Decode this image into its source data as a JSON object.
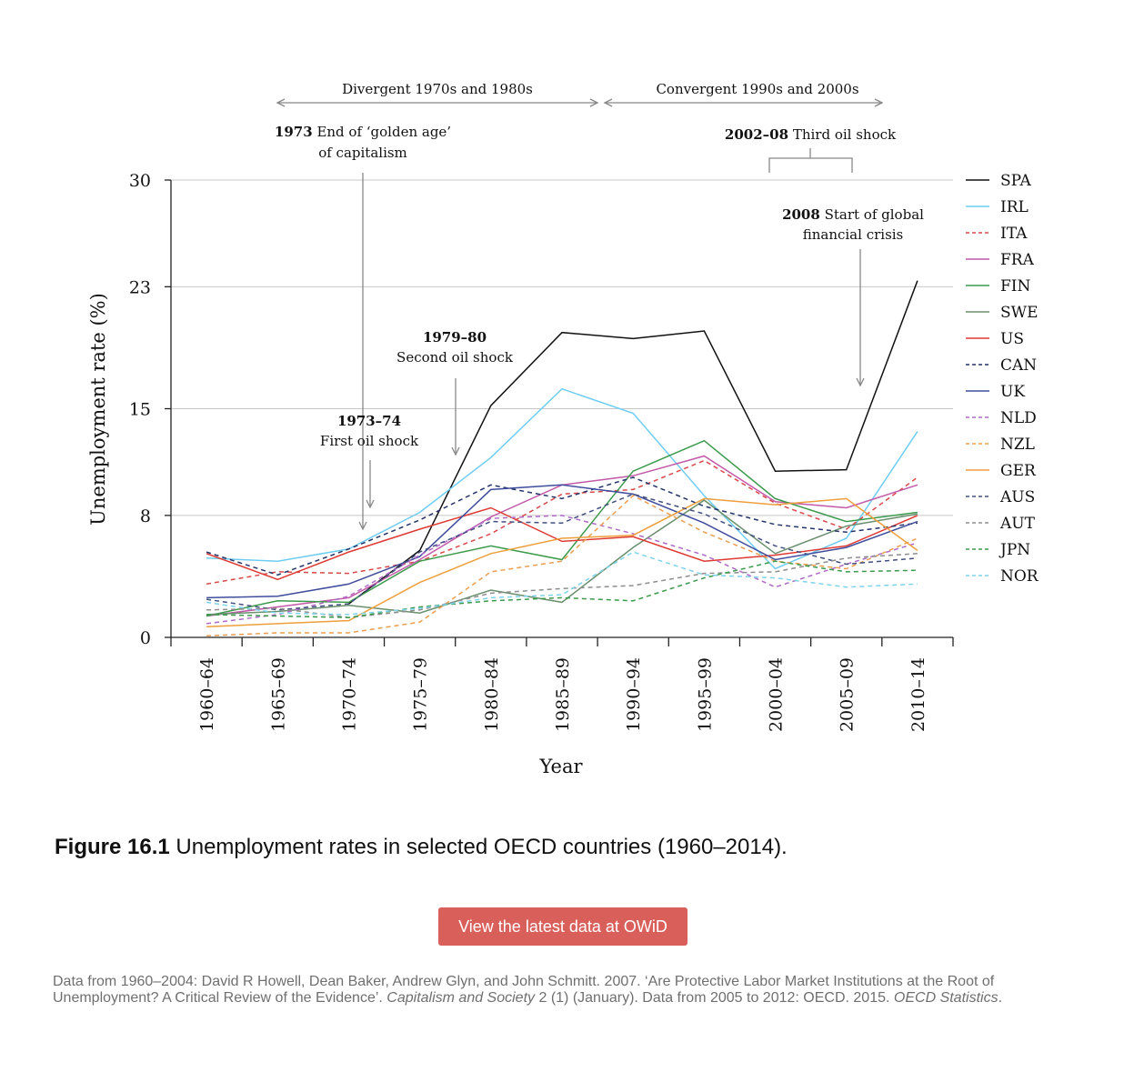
{
  "chart_data": {
    "type": "line",
    "title": "",
    "xlabel": "Year",
    "ylabel": "Unemployment rate (%)",
    "categories": [
      "1960–64",
      "1965–69",
      "1970–74",
      "1975–79",
      "1980–84",
      "1985–89",
      "1990–94",
      "1995–99",
      "2000–04",
      "2005–09",
      "2010–14"
    ],
    "yticks": [
      0,
      8,
      15,
      23,
      30
    ],
    "ylim": [
      0,
      30
    ],
    "grid": true,
    "legend_position": "right",
    "series": [
      {
        "name": "SPA",
        "color": "#111111",
        "dash": "solid",
        "values": [
          null,
          null,
          2.2,
          5.7,
          15.2,
          20.0,
          19.6,
          20.1,
          10.9,
          11.0,
          23.4
        ]
      },
      {
        "name": "IRL",
        "color": "#6fcdf2",
        "dash": "solid",
        "values": [
          5.2,
          5.0,
          5.8,
          8.2,
          11.8,
          16.3,
          14.7,
          9.3,
          4.5,
          6.5,
          13.5
        ]
      },
      {
        "name": "ITA",
        "color": "#d94848",
        "dash": "dashed",
        "values": [
          3.5,
          4.3,
          4.2,
          5.0,
          6.8,
          9.4,
          9.7,
          11.6,
          8.8,
          7.1,
          10.5
        ]
      },
      {
        "name": "FRA",
        "color": "#c259a8",
        "dash": "solid",
        "values": [
          1.4,
          2.0,
          2.6,
          5.1,
          7.9,
          10.0,
          10.6,
          11.9,
          8.9,
          8.5,
          10.0
        ]
      },
      {
        "name": "FIN",
        "color": "#3c9a4c",
        "dash": "solid",
        "values": [
          1.4,
          2.4,
          2.3,
          5.0,
          6.0,
          5.1,
          10.9,
          12.9,
          9.1,
          7.6,
          8.2
        ]
      },
      {
        "name": "SWE",
        "color": "#6a8f6e",
        "dash": "solid",
        "values": [
          1.5,
          1.7,
          2.1,
          1.6,
          3.1,
          2.3,
          5.9,
          9.0,
          5.5,
          7.3,
          8.1
        ]
      },
      {
        "name": "US",
        "color": "#dd3a33",
        "dash": "solid",
        "values": [
          5.5,
          3.8,
          5.6,
          7.1,
          8.5,
          6.3,
          6.6,
          5.0,
          5.4,
          6.0,
          8.0
        ]
      },
      {
        "name": "CAN",
        "color": "#23346a",
        "dash": "dashed",
        "values": [
          5.6,
          4.1,
          5.8,
          7.7,
          10.0,
          9.1,
          10.5,
          8.6,
          7.4,
          6.9,
          7.5
        ]
      },
      {
        "name": "UK",
        "color": "#3f4d9c",
        "dash": "solid",
        "values": [
          2.6,
          2.7,
          3.5,
          5.3,
          9.7,
          10.0,
          9.4,
          7.5,
          5.1,
          5.9,
          7.6
        ]
      },
      {
        "name": "NLD",
        "color": "#b069c9",
        "dash": "dashed",
        "values": [
          0.9,
          1.5,
          2.7,
          5.4,
          7.8,
          8.0,
          6.8,
          5.4,
          3.3,
          4.8,
          6.2
        ]
      },
      {
        "name": "NZL",
        "color": "#eb9d4f",
        "dash": "dashed",
        "values": [
          0.1,
          0.3,
          0.3,
          1.0,
          4.3,
          5.0,
          9.3,
          6.9,
          5.0,
          4.5,
          6.5
        ]
      },
      {
        "name": "GER",
        "color": "#ee9f3c",
        "dash": "solid",
        "values": [
          0.7,
          0.9,
          1.1,
          3.6,
          5.5,
          6.5,
          6.7,
          9.1,
          8.7,
          9.1,
          5.7
        ]
      },
      {
        "name": "AUS",
        "color": "#43507f",
        "dash": "dashed",
        "values": [
          2.5,
          1.8,
          2.2,
          5.6,
          7.6,
          7.5,
          9.4,
          8.1,
          6.0,
          4.8,
          5.2
        ]
      },
      {
        "name": "AUT",
        "color": "#8d8d8d",
        "dash": "dashed",
        "values": [
          1.8,
          1.9,
          1.3,
          1.8,
          2.9,
          3.2,
          3.4,
          4.2,
          4.3,
          5.2,
          5.5
        ]
      },
      {
        "name": "JPN",
        "color": "#3a9a4a",
        "dash": "dashed",
        "values": [
          1.5,
          1.4,
          1.3,
          2.0,
          2.4,
          2.6,
          2.4,
          3.9,
          5.0,
          4.3,
          4.4
        ]
      },
      {
        "name": "NOR",
        "color": "#7dd3ec",
        "dash": "dashed",
        "values": [
          2.3,
          1.6,
          1.5,
          1.9,
          2.6,
          2.8,
          5.6,
          4.1,
          3.9,
          3.3,
          3.5
        ]
      }
    ],
    "annotations": {
      "divergent": "Divergent 1970s and 1980s",
      "convergent": "Convergent 1990s and 2000s",
      "golden_bold": "1973",
      "golden_text1": "End of ‘golden age’",
      "golden_text2": "of capitalism",
      "third_bold": "2002–08",
      "third_text": "Third oil shock",
      "crisis_bold": "2008",
      "crisis_text1": "Start of global",
      "crisis_text2": "financial crisis",
      "second_bold": "1979–80",
      "second_text": "Second oil shock",
      "first_bold": "1973–74",
      "first_text": "First oil shock"
    }
  },
  "caption": {
    "label": "Figure 16.1",
    "text": " Unemployment rates in selected OECD countries (1960–2014)."
  },
  "owid_button": "View the latest data at OWiD",
  "source": {
    "part1": "Data from 1960–2004: David R Howell, Dean Baker, Andrew Glyn, and John Schmitt. 2007. ‘Are Protective Labor Market Institutions at the Root of Unemployment? A Critical Review of the Evidence’. ",
    "journal": "Capitalism and Society",
    "part2": " 2 (1) (January). Data from 2005 to 2012: OECD. 2015. ",
    "stats": "OECD Statistics",
    "part3": "."
  }
}
